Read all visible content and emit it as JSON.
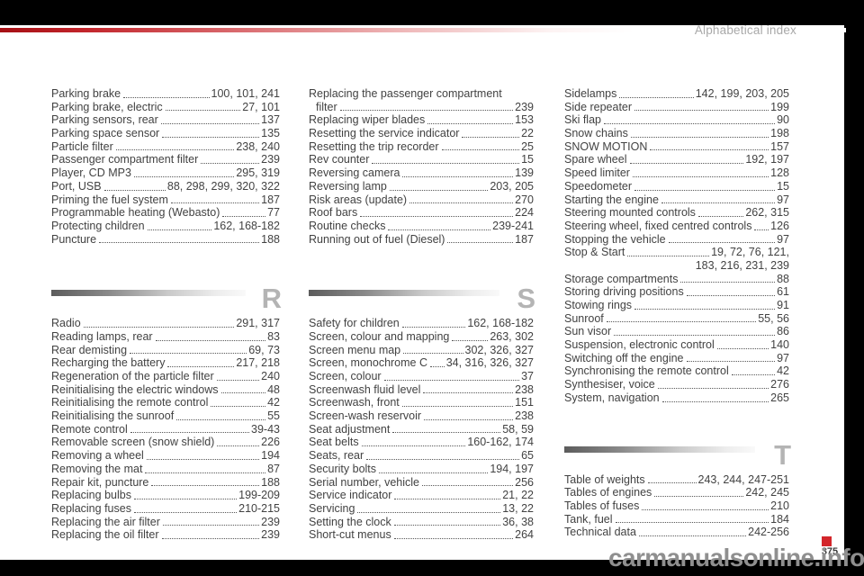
{
  "header": {
    "title": "Alphabetical index"
  },
  "footer": {
    "page_number": "375",
    "watermark": "carmanualsonline.info"
  },
  "colors": {
    "accent_red": "#c2252b",
    "section_letter_gray": "#b4b4b4",
    "bar_black": "#000000"
  },
  "columns": [
    {
      "blocks": [
        {
          "entries": [
            {
              "label": "Parking brake",
              "pages": "100, 101, 241"
            },
            {
              "label": "Parking brake, electric",
              "pages": "27, 101"
            },
            {
              "label": "Parking sensors, rear",
              "pages": "137"
            },
            {
              "label": "Parking space sensor",
              "pages": "135"
            },
            {
              "label": "Particle filter",
              "pages": "238, 240"
            },
            {
              "label": "Passenger compartment filter",
              "pages": "239"
            },
            {
              "label": "Player, CD MP3",
              "pages": "295, 319"
            },
            {
              "label": "Port, USB",
              "pages": "88, 298, 299, 320, 322"
            },
            {
              "label": "Priming the fuel system",
              "pages": "187"
            },
            {
              "label": "Programmable heating (Webasto)",
              "pages": "77"
            },
            {
              "label": "Protecting children",
              "pages": "162, 168-182"
            },
            {
              "label": "Puncture",
              "pages": "188"
            }
          ]
        },
        {
          "letter": "R",
          "entries": [
            {
              "label": "Radio",
              "pages": "291, 317"
            },
            {
              "label": "Reading lamps, rear",
              "pages": "83"
            },
            {
              "label": "Rear demisting",
              "pages": "69, 73"
            },
            {
              "label": "Recharging the battery",
              "pages": "217, 218"
            },
            {
              "label": "Regeneration of the particle filter",
              "pages": "240"
            },
            {
              "label": "Reinitialising the electric windows",
              "pages": "48"
            },
            {
              "label": "Reinitialising the remote control",
              "pages": "42"
            },
            {
              "label": "Reinitialising the sunroof",
              "pages": "55"
            },
            {
              "label": "Remote control",
              "pages": "39-43"
            },
            {
              "label": "Removable screen (snow shield)",
              "pages": "226"
            },
            {
              "label": "Removing a wheel",
              "pages": "194"
            },
            {
              "label": "Removing the mat",
              "pages": "87"
            },
            {
              "label": "Repair kit, puncture",
              "pages": "188"
            },
            {
              "label": "Replacing bulbs",
              "pages": "199-209"
            },
            {
              "label": "Replacing fuses",
              "pages": "210-215"
            },
            {
              "label": "Replacing the air filter",
              "pages": "239"
            },
            {
              "label": "Replacing the oil filter",
              "pages": "239"
            }
          ]
        }
      ]
    },
    {
      "blocks": [
        {
          "entries": [
            {
              "label": "Replacing the passenger compartment",
              "label_cont": "filter",
              "pages": "239"
            },
            {
              "label": "Replacing wiper blades",
              "pages": "153"
            },
            {
              "label": "Resetting the service indicator",
              "pages": "22"
            },
            {
              "label": "Resetting the trip recorder",
              "pages": "25"
            },
            {
              "label": "Rev counter",
              "pages": "15"
            },
            {
              "label": "Reversing camera",
              "pages": "139"
            },
            {
              "label": "Reversing lamp",
              "pages": "203, 205"
            },
            {
              "label": "Risk areas (update)",
              "pages": "270"
            },
            {
              "label": "Roof bars",
              "pages": "224"
            },
            {
              "label": "Routine checks",
              "pages": "239-241"
            },
            {
              "label": "Running out of fuel (Diesel)",
              "pages": "187"
            }
          ]
        },
        {
          "letter": "S",
          "entries": [
            {
              "label": "Safety for children",
              "pages": "162, 168-182"
            },
            {
              "label": "Screen, colour and mapping",
              "pages": "263, 302"
            },
            {
              "label": "Screen menu map",
              "pages": "302, 326, 327"
            },
            {
              "label": "Screen, monochrome C",
              "pages": "34, 316, 326, 327"
            },
            {
              "label": "Screen, colour",
              "pages": "37"
            },
            {
              "label": "Screenwash fluid level",
              "pages": "238"
            },
            {
              "label": "Screenwash, front",
              "pages": "151"
            },
            {
              "label": "Screen-wash reservoir",
              "pages": "238"
            },
            {
              "label": "Seat adjustment",
              "pages": "58, 59"
            },
            {
              "label": "Seat belts",
              "pages": "160-162, 174"
            },
            {
              "label": "Seats, rear",
              "pages": "65"
            },
            {
              "label": "Security bolts",
              "pages": "194, 197"
            },
            {
              "label": "Serial number, vehicle",
              "pages": "256"
            },
            {
              "label": "Service indicator",
              "pages": "21, 22"
            },
            {
              "label": "Servicing",
              "pages": "13, 22"
            },
            {
              "label": "Setting the clock",
              "pages": "36, 38"
            },
            {
              "label": "Short-cut menus",
              "pages": "264"
            }
          ]
        }
      ]
    },
    {
      "blocks": [
        {
          "entries": [
            {
              "label": "Sidelamps",
              "pages": "142, 199, 203, 205"
            },
            {
              "label": "Side repeater",
              "pages": "199"
            },
            {
              "label": "Ski flap",
              "pages": "90"
            },
            {
              "label": "Snow chains",
              "pages": "198"
            },
            {
              "label": "SNOW MOTION",
              "pages": "157"
            },
            {
              "label": "Spare wheel",
              "pages": "192, 197"
            },
            {
              "label": "Speed limiter",
              "pages": "128"
            },
            {
              "label": "Speedometer",
              "pages": "15"
            },
            {
              "label": "Starting the engine",
              "pages": "97"
            },
            {
              "label": "Steering mounted controls",
              "pages": "262, 315"
            },
            {
              "label": "Steering wheel, fixed centred controls",
              "pages": "126"
            },
            {
              "label": "Stopping the vehicle",
              "pages": "97"
            },
            {
              "label": "Stop & Start",
              "pages": "19, 72, 76, 121,",
              "pages_cont": "183, 216, 231, 239"
            },
            {
              "label": "Storage compartments",
              "pages": "88"
            },
            {
              "label": "Storing driving positions",
              "pages": "61"
            },
            {
              "label": "Stowing rings",
              "pages": "91"
            },
            {
              "label": "Sunroof",
              "pages": "55, 56"
            },
            {
              "label": "Sun visor",
              "pages": "86"
            },
            {
              "label": "Suspension, electronic control",
              "pages": "140"
            },
            {
              "label": "Switching off the engine",
              "pages": "97"
            },
            {
              "label": "Synchronising the remote control",
              "pages": "42"
            },
            {
              "label": "Synthesiser, voice",
              "pages": "276"
            },
            {
              "label": "System, navigation",
              "pages": "265"
            }
          ]
        },
        {
          "letter": "T",
          "entries": [
            {
              "label": "Table of weights",
              "pages": "243, 244, 247-251"
            },
            {
              "label": "Tables of engines",
              "pages": "242, 245"
            },
            {
              "label": "Tables of fuses",
              "pages": "210"
            },
            {
              "label": "Tank, fuel",
              "pages": "184"
            },
            {
              "label": "Technical data",
              "pages": "242-256"
            }
          ]
        }
      ]
    }
  ]
}
